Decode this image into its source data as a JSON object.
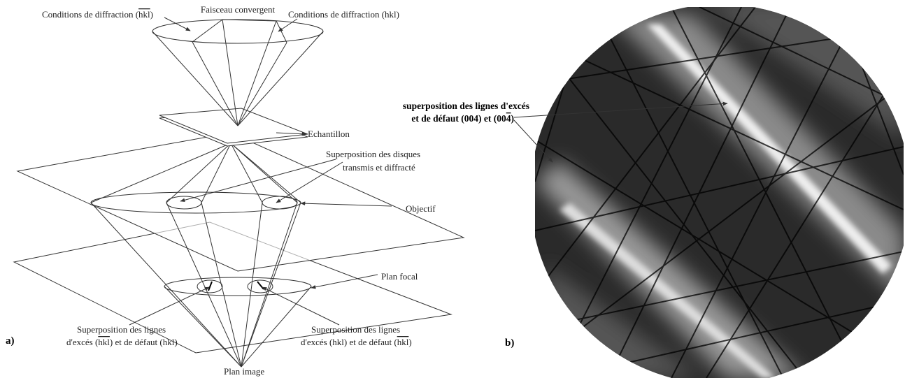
{
  "panel_a": {
    "label": "a)",
    "top_left": [
      "Conditions de diffraction (",
      "hkl",
      ")"
    ],
    "top_center": "Faisceau convergent",
    "top_right": "Conditions de diffraction (hkl)",
    "sample": "Echantillon",
    "discs": [
      "Superposition des disques",
      "transmis et diffracté"
    ],
    "objective": "Objectif",
    "focal_plane": "Plan focal",
    "lines_left": [
      "Superposition des lignes",
      [
        "d'excés (",
        "hkl",
        ") et de défaut (hkl)"
      ]
    ],
    "lines_right": [
      "Superposition des lignes",
      [
        "d'excés (hkl) et de défaut (",
        "hkl",
        ")"
      ]
    ],
    "image_plane": "Plan image"
  },
  "panel_b": {
    "label": "b)",
    "annotation": [
      "superposition des lignes d'excés",
      [
        "et de défaut (004) et (00",
        "4",
        ")"
      ]
    ]
  }
}
